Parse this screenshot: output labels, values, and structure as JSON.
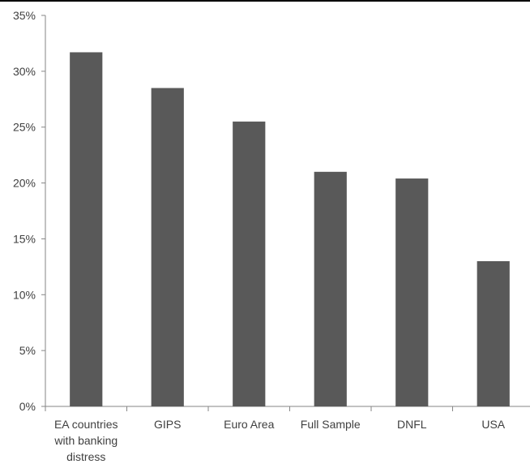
{
  "chart_data": {
    "type": "bar",
    "categories": [
      [
        "EA countries",
        "with banking",
        "distress"
      ],
      [
        "GIPS"
      ],
      [
        "Euro Area"
      ],
      [
        "Full Sample"
      ],
      [
        "DNFL"
      ],
      [
        "USA"
      ]
    ],
    "values": [
      31.7,
      28.5,
      25.5,
      21.0,
      20.4,
      13.0
    ],
    "y_unit": "%",
    "ylim": [
      0,
      35
    ],
    "yticks": [
      0,
      5,
      10,
      15,
      20,
      25,
      30,
      35
    ],
    "ytick_labels": [
      "0%",
      "5%",
      "10%",
      "15%",
      "20%",
      "25%",
      "30%",
      "35%"
    ],
    "title": "",
    "xlabel": "",
    "ylabel": "",
    "grid": false,
    "colors": {
      "bar": "#595959",
      "axis": "#868686",
      "text": "#404040"
    }
  }
}
